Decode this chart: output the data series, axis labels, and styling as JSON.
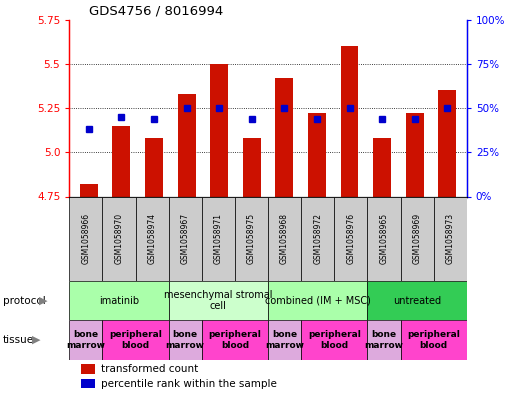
{
  "title": "GDS4756 / 8016994",
  "samples": [
    "GSM1058966",
    "GSM1058970",
    "GSM1058974",
    "GSM1058967",
    "GSM1058971",
    "GSM1058975",
    "GSM1058968",
    "GSM1058972",
    "GSM1058976",
    "GSM1058965",
    "GSM1058969",
    "GSM1058973"
  ],
  "red_values": [
    4.82,
    5.15,
    5.08,
    5.33,
    5.5,
    5.08,
    5.42,
    5.22,
    5.6,
    5.08,
    5.22,
    5.35
  ],
  "blue_values": [
    38,
    45,
    44,
    50,
    50,
    44,
    50,
    44,
    50,
    44,
    44,
    50
  ],
  "ylim": [
    4.75,
    5.75
  ],
  "yticks_left": [
    4.75,
    5.0,
    5.25,
    5.5,
    5.75
  ],
  "yticks_right": [
    0,
    25,
    50,
    75,
    100
  ],
  "yticklabels_right": [
    "0%",
    "25%",
    "50%",
    "75%",
    "100%"
  ],
  "bar_color": "#cc1100",
  "dot_color": "#0000cc",
  "protocols": [
    {
      "label": "imatinib",
      "start": 0,
      "end": 3,
      "color": "#aaffaa"
    },
    {
      "label": "mesenchymal stromal\ncell",
      "start": 3,
      "end": 6,
      "color": "#ccffcc"
    },
    {
      "label": "combined (IM + MSC)",
      "start": 6,
      "end": 9,
      "color": "#aaffaa"
    },
    {
      "label": "untreated",
      "start": 9,
      "end": 12,
      "color": "#33cc55"
    }
  ],
  "tissues": [
    {
      "label": "bone\nmarrow",
      "start": 0,
      "end": 1,
      "color": "#ddaadd"
    },
    {
      "label": "peripheral\nblood",
      "start": 1,
      "end": 3,
      "color": "#ff44cc"
    },
    {
      "label": "bone\nmarrow",
      "start": 3,
      "end": 4,
      "color": "#ddaadd"
    },
    {
      "label": "peripheral\nblood",
      "start": 4,
      "end": 6,
      "color": "#ff44cc"
    },
    {
      "label": "bone\nmarrow",
      "start": 6,
      "end": 7,
      "color": "#ddaadd"
    },
    {
      "label": "peripheral\nblood",
      "start": 7,
      "end": 9,
      "color": "#ff44cc"
    },
    {
      "label": "bone\nmarrow",
      "start": 9,
      "end": 10,
      "color": "#ddaadd"
    },
    {
      "label": "peripheral\nblood",
      "start": 10,
      "end": 12,
      "color": "#ff44cc"
    }
  ],
  "legend_red": "transformed count",
  "legend_blue": "percentile rank within the sample",
  "protocol_label": "protocol",
  "tissue_label": "tissue",
  "sample_box_color": "#cccccc",
  "bg_color": "#ffffff"
}
